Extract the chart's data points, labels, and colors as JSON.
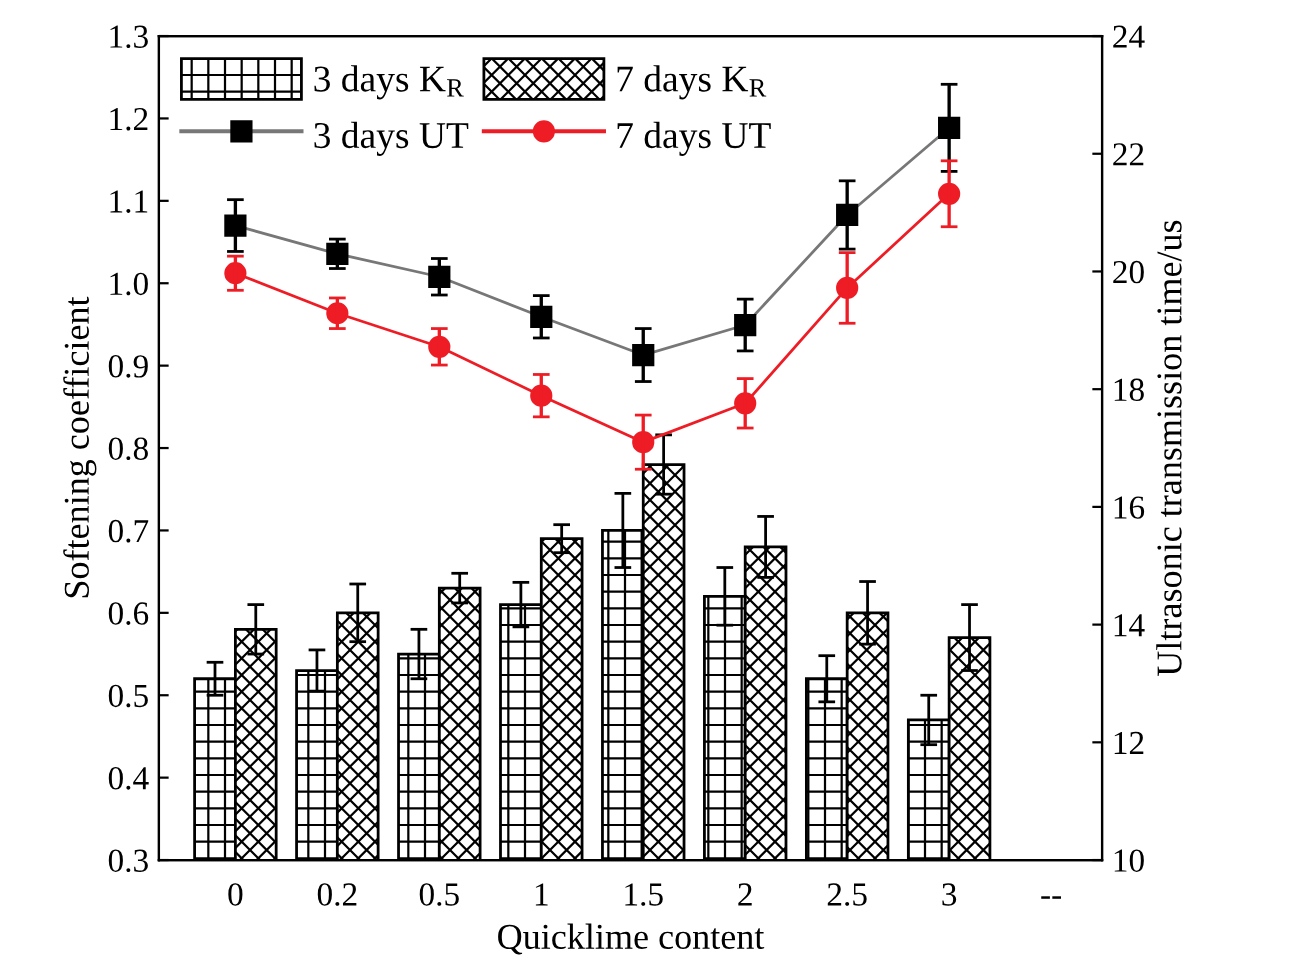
{
  "chart_data": {
    "type": "bar",
    "xlabel": "Quicklime content",
    "ylabel": "Softening coefficient",
    "y2label": "Ultrasonic transmission time/us",
    "categories": [
      "0",
      "0.2",
      "0.5",
      "1",
      "1.5",
      "2",
      "2.5",
      "3",
      "--"
    ],
    "ylim": [
      0.3,
      1.3
    ],
    "yticks": [
      0.3,
      0.4,
      0.5,
      0.6,
      0.7,
      0.8,
      0.9,
      {
        "value": 1,
        "label": "1.0"
      },
      1.1,
      1.2,
      1.3
    ],
    "y2lim": [
      10,
      24
    ],
    "y2ticks": [
      10,
      12,
      14,
      16,
      18,
      20,
      22,
      24
    ],
    "grid": false,
    "legend": "top left",
    "series": [
      {
        "name": "3 days K$_{R}$",
        "color": "#000000",
        "values": [
          0.52,
          0.53,
          0.55,
          0.61,
          0.7,
          0.62,
          0.52,
          0.47,
          null
        ],
        "errors": [
          0.02,
          0.025,
          0.03,
          0.027,
          0.045,
          0.035,
          0.028,
          0.03,
          null
        ]
      },
      {
        "name": "7 days K$_{R}$",
        "color": "#000000",
        "values": [
          0.58,
          0.6,
          0.63,
          0.69,
          0.78,
          0.68,
          0.6,
          0.57,
          null
        ],
        "errors": [
          0.03,
          0.035,
          0.018,
          0.017,
          0.036,
          0.037,
          0.038,
          0.04,
          null
        ]
      },
      {
        "name": "3 days UT",
        "type": "line",
        "axis": "y2",
        "color": "#000000",
        "marker": "square",
        "values": [
          20.78,
          20.3,
          19.91,
          19.23,
          18.58,
          19.09,
          20.96,
          22.44,
          null
        ],
        "errors": [
          0.44,
          0.25,
          0.31,
          0.36,
          0.45,
          0.44,
          0.58,
          0.74,
          null
        ]
      },
      {
        "name": "7 days UT",
        "type": "line",
        "axis": "y2",
        "color": "#ee1c25",
        "marker": "circle",
        "values": [
          19.97,
          19.29,
          18.72,
          17.89,
          17.1,
          17.76,
          19.72,
          21.32,
          null
        ],
        "errors": [
          0.29,
          0.26,
          0.31,
          0.36,
          0.46,
          0.42,
          0.6,
          0.56,
          null
        ]
      }
    ]
  }
}
